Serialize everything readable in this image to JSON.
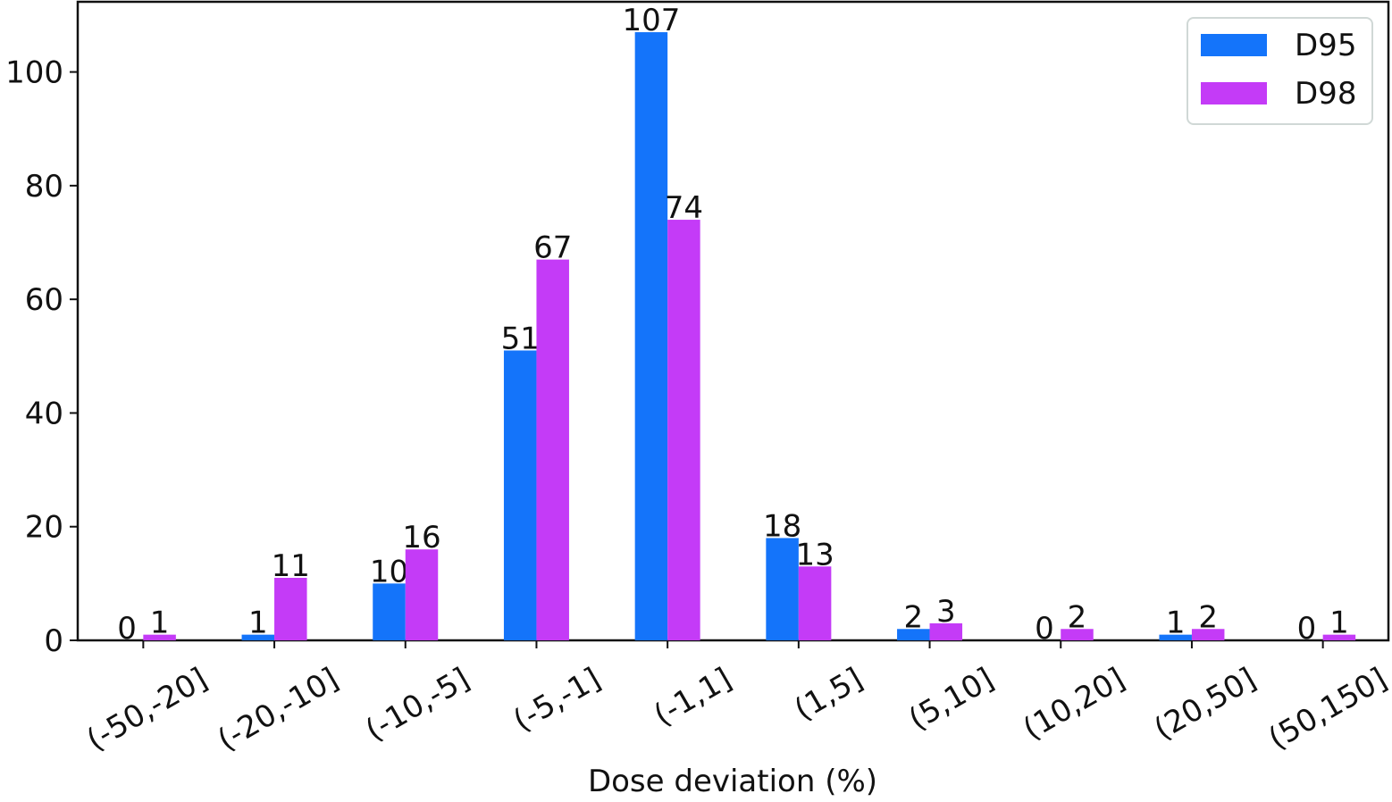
{
  "chart_data": {
    "type": "bar",
    "title": "",
    "xlabel": "Dose deviation (%)",
    "ylabel": "",
    "ylim": [
      0,
      112.35
    ],
    "yticks": [
      0,
      20,
      40,
      60,
      80,
      100
    ],
    "categories": [
      "(-50,-20]",
      "(-20,-10]",
      "(-10,-5]",
      "(-5,-1]",
      "(-1,1]",
      "(1,5]",
      "(5,10]",
      "(10,20]",
      "(20,50]",
      "(50,150]"
    ],
    "series": [
      {
        "name": "D95",
        "color": "#1474FA",
        "values": [
          0,
          1,
          10,
          51,
          107,
          18,
          2,
          0,
          1,
          0
        ]
      },
      {
        "name": "D98",
        "color": "#C43BF7",
        "values": [
          1,
          11,
          16,
          67,
          74,
          13,
          3,
          2,
          2,
          1
        ]
      }
    ],
    "legend": "top-right",
    "grid": false,
    "data_labels": true
  }
}
